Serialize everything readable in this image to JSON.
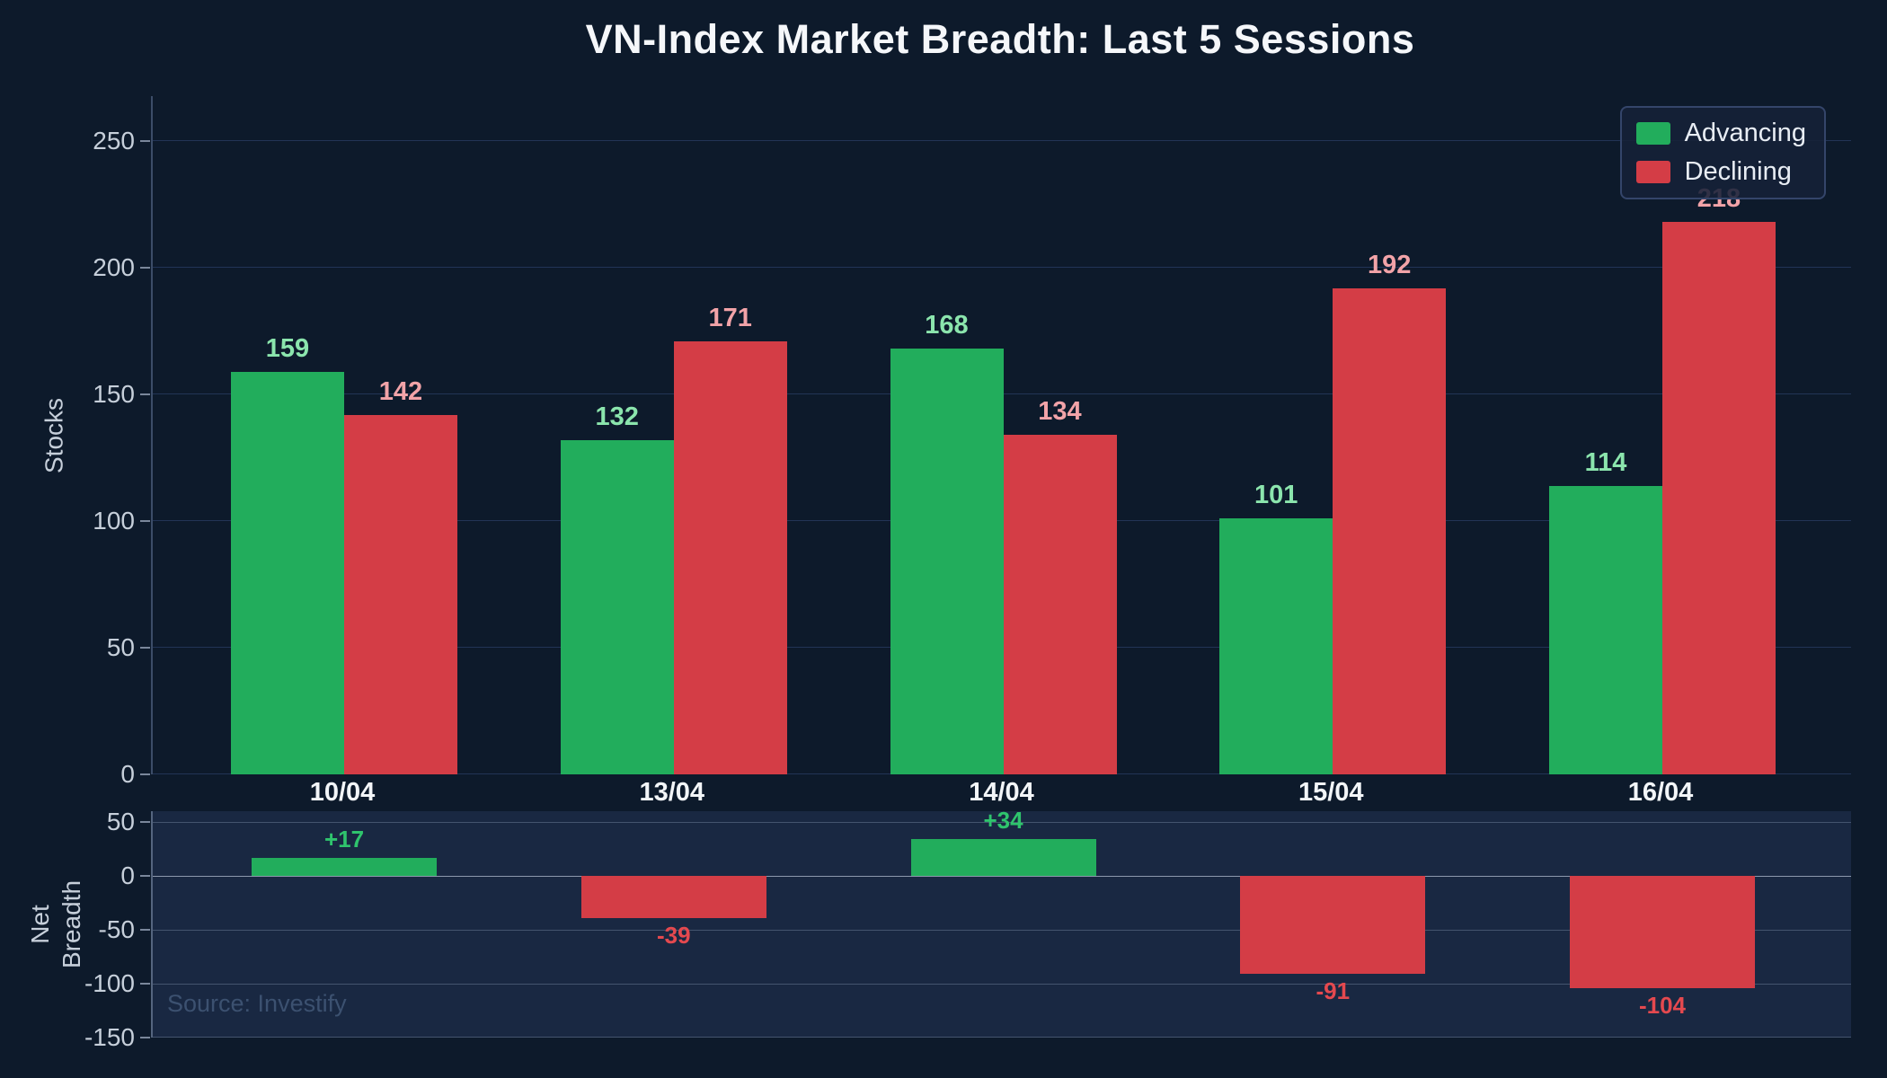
{
  "chart_data": {
    "type": "bar",
    "title": "VN-Index Market Breadth: Last 5 Sessions",
    "categories": [
      "10/04",
      "13/04",
      "14/04",
      "15/04",
      "16/04"
    ],
    "series": [
      {
        "name": "Advancing",
        "color": "#22ad5c",
        "label_color": "#8be5ad",
        "values": [
          159,
          132,
          168,
          101,
          114
        ]
      },
      {
        "name": "Declining",
        "color": "#d43d46",
        "label_color": "#f2a3a8",
        "values": [
          142,
          171,
          134,
          192,
          218
        ]
      }
    ],
    "top_panel": {
      "ylabel": "Stocks",
      "ticks": [
        0,
        50,
        100,
        150,
        200,
        250
      ],
      "ylim": [
        0,
        268
      ],
      "grid": true
    },
    "net_panel": {
      "ylabel": "Net\nBreadth",
      "ticks": [
        50,
        0,
        -50,
        -100,
        -150
      ],
      "ylim": [
        -150,
        60
      ],
      "values": [
        17,
        -39,
        34,
        -91,
        -104
      ],
      "labels": [
        "+17",
        "-39",
        "+34",
        "-91",
        "-104"
      ],
      "positive_color": "#22ad5c",
      "negative_color": "#d43d46",
      "positive_label_color": "#2fc46d",
      "negative_label_color": "#e4494f",
      "grid": true
    },
    "legend_position": "top-right"
  },
  "footer": {
    "source": "Source: Investify"
  }
}
